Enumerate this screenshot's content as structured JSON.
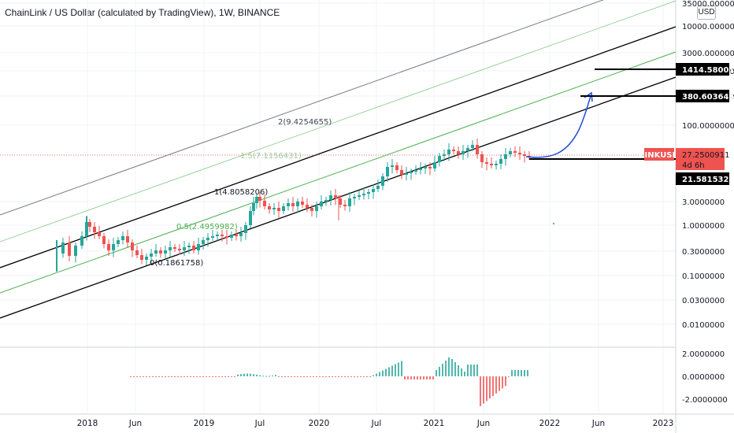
{
  "title": "ChainLink / US Dollar (calculated by TradingView), 1W, BINANCE",
  "currency_button": "USD",
  "colors": {
    "up": "#26a69a",
    "down": "#ef5350",
    "channel_black": "#000000",
    "channel_gray": "#787b86",
    "channel_green": "#4caf50",
    "projection": "#1e4bd8",
    "price_line": "#ef5350"
  },
  "chart_data": {
    "type": "candlestick",
    "scale": "log",
    "y_ticks": [
      "35000.0000000",
      "10000.0000000",
      "3000.0000000",
      "1000.0000000",
      "300.0000000",
      "100.0000000",
      "27.2500911",
      "3.0000000",
      "1.0000000",
      "0.3000000",
      "0.1000000",
      "0.0300000",
      "0.0100000"
    ],
    "x_ticks": [
      "2018",
      "Jun",
      "2019",
      "Jul",
      "2020",
      "Jul",
      "2021",
      "Jun",
      "2022",
      "Jun",
      "2023"
    ],
    "fib_channel_labels": [
      {
        "level": "0",
        "text": "0(0.1861758)"
      },
      {
        "level": "0.5",
        "text": "0.5(2.4959982)"
      },
      {
        "level": "1",
        "text": "1(4.8058206)"
      },
      {
        "level": "1.5",
        "text": "1.5(7.1156431)"
      },
      {
        "level": "2",
        "text": "2(9.4254655)"
      }
    ],
    "price_badges": [
      {
        "name": "LINKUSD",
        "value": "27.2500911",
        "countdown": "4d 6h"
      },
      {
        "name": "",
        "value": "1414.5800172"
      },
      {
        "name": "",
        "value": "380.6036461"
      },
      {
        "name": "",
        "value": "21.5815323"
      }
    ],
    "oscillator_ticks": [
      "2.0000000",
      "0.0000000",
      "-2.0000000"
    ]
  }
}
